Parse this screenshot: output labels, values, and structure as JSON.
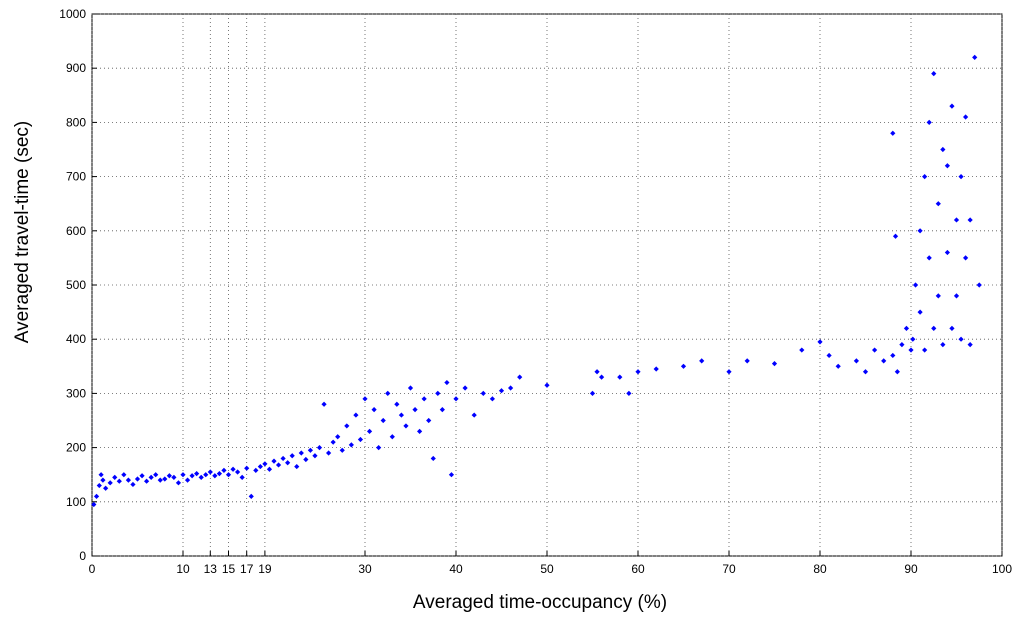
{
  "chart_data": {
    "type": "scatter",
    "x_label": "Averaged time-occupancy (%)",
    "y_label": "Averaged travel-time (sec)",
    "xlim": [
      0,
      100
    ],
    "ylim": [
      0,
      1000
    ],
    "xticks": [
      0,
      10,
      13,
      15,
      17,
      19,
      30,
      40,
      50,
      60,
      70,
      80,
      90,
      100
    ],
    "yticks": [
      0,
      100,
      200,
      300,
      400,
      500,
      600,
      700,
      800,
      900,
      1000
    ],
    "grid": true,
    "color": "#0000ff",
    "x": [
      0.2,
      0.5,
      0.8,
      1,
      1.2,
      1.5,
      2,
      2.5,
      3,
      3.5,
      4,
      4.5,
      5,
      5.5,
      6,
      6.5,
      7,
      7.5,
      8,
      8.5,
      9,
      9.5,
      10,
      10.5,
      11,
      11.5,
      12,
      12.5,
      13,
      13.5,
      14,
      14.5,
      15,
      15.5,
      16,
      16.5,
      17,
      17.5,
      18,
      18.5,
      19,
      19.5,
      20,
      20.5,
      21,
      21.5,
      22,
      22.5,
      23,
      23.5,
      24,
      24.5,
      25,
      25.5,
      26,
      26.5,
      27,
      27.5,
      28,
      28.5,
      29,
      29.5,
      30,
      30.5,
      31,
      31.5,
      32,
      32.5,
      33,
      33.5,
      34,
      34.5,
      35,
      35.5,
      36,
      36.5,
      37,
      37.5,
      38,
      38.5,
      39,
      39.5,
      40,
      41,
      42,
      43,
      44,
      45,
      46,
      47,
      50,
      55,
      55.5,
      56,
      58,
      59,
      60,
      62,
      65,
      67,
      70,
      72,
      75,
      78,
      80,
      81,
      82,
      84,
      85,
      86,
      87,
      88,
      88.5,
      89,
      89.5,
      90,
      90.2,
      90.5,
      91,
      91,
      91.5,
      91.5,
      92,
      92,
      92.5,
      92.5,
      93,
      93,
      93.5,
      93.5,
      94,
      94,
      94.5,
      94.5,
      95,
      95,
      95.5,
      95.5,
      96,
      96,
      96.5,
      96.5,
      97,
      97.5,
      88,
      88.3
    ],
    "y": [
      95,
      110,
      130,
      150,
      140,
      125,
      135,
      145,
      138,
      150,
      140,
      132,
      142,
      148,
      138,
      145,
      150,
      140,
      142,
      148,
      145,
      135,
      150,
      140,
      148,
      152,
      145,
      150,
      155,
      148,
      152,
      158,
      150,
      160,
      155,
      145,
      162,
      110,
      158,
      165,
      170,
      160,
      175,
      168,
      180,
      172,
      185,
      165,
      190,
      178,
      195,
      185,
      200,
      280,
      190,
      210,
      220,
      195,
      240,
      205,
      260,
      215,
      290,
      230,
      270,
      200,
      250,
      300,
      220,
      280,
      260,
      240,
      310,
      270,
      230,
      290,
      250,
      180,
      300,
      270,
      320,
      150,
      290,
      310,
      260,
      300,
      290,
      305,
      310,
      330,
      315,
      300,
      340,
      330,
      330,
      300,
      340,
      345,
      350,
      360,
      340,
      360,
      355,
      380,
      395,
      370,
      350,
      360,
      340,
      380,
      360,
      370,
      340,
      390,
      420,
      380,
      400,
      500,
      600,
      450,
      700,
      380,
      800,
      550,
      890,
      420,
      650,
      480,
      750,
      390,
      720,
      560,
      830,
      420,
      620,
      480,
      700,
      400,
      810,
      550,
      620,
      390,
      920,
      500,
      780,
      590
    ]
  }
}
